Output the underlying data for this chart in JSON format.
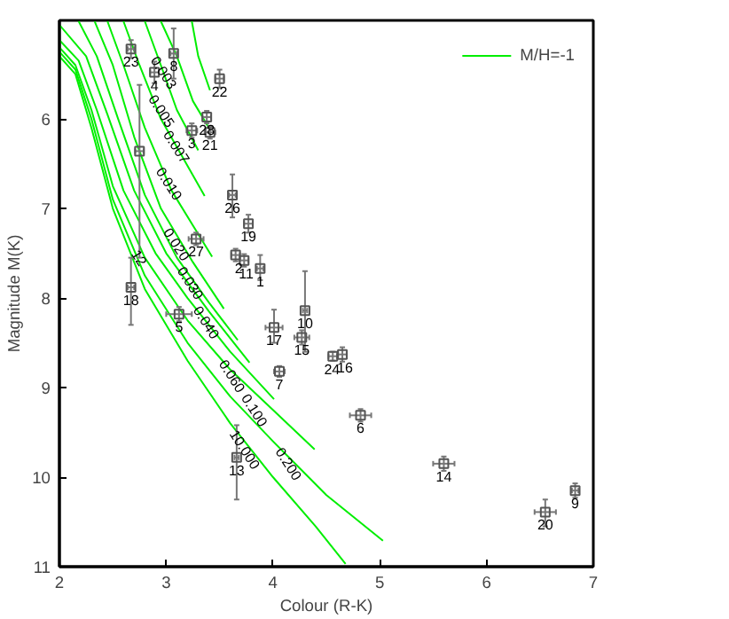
{
  "chart_data": {
    "type": "line",
    "xlabel": "Colour (R-K)",
    "ylabel": "Magnitude M(K)",
    "xlim": [
      2,
      7
    ],
    "ylim": [
      11,
      4.9
    ],
    "xticks": [
      2,
      3,
      4,
      5,
      6,
      7
    ],
    "yticks": [
      6,
      7,
      8,
      9,
      10,
      11
    ],
    "grid": false,
    "legend": "top right",
    "line_style": "solid",
    "series": [
      {
        "name": "M/H=-1",
        "color": "#00ee00",
        "x": [
          2.0,
          2.15,
          2.3,
          2.5,
          2.8,
          3.2,
          3.6,
          4.0,
          4.4,
          4.68
        ],
        "values": [
          5.3,
          5.5,
          6.1,
          7.0,
          7.9,
          8.7,
          9.4,
          10.0,
          10.55,
          10.97
        ]
      },
      {
        "color": "#00ee00",
        "x": [
          2.0,
          2.15,
          2.3,
          2.5,
          2.8,
          3.2,
          3.6,
          4.0,
          4.5,
          5.03
        ],
        "values": [
          5.25,
          5.45,
          6.0,
          6.9,
          7.75,
          8.5,
          9.1,
          9.6,
          10.2,
          10.71
        ]
      },
      {
        "color": "#00ee00",
        "x": [
          2.0,
          2.15,
          2.3,
          2.5,
          2.8,
          3.2,
          3.6,
          4.0,
          4.39
        ],
        "values": [
          5.2,
          5.4,
          5.9,
          6.75,
          7.55,
          8.25,
          8.8,
          9.25,
          9.69
        ]
      },
      {
        "color": "#00ee00",
        "x": [
          2.0,
          2.18,
          2.35,
          2.6,
          2.9,
          3.2,
          3.6,
          4.01
        ],
        "values": [
          5.12,
          5.35,
          5.9,
          6.8,
          7.5,
          8.0,
          8.6,
          9.13
        ]
      },
      {
        "color": "#00ee00",
        "x": [
          2.0,
          2.25,
          2.45,
          2.7,
          3.0,
          3.4,
          3.78
        ],
        "values": [
          4.95,
          5.3,
          5.95,
          6.8,
          7.5,
          8.15,
          8.72
        ]
      },
      {
        "color": "#00ee00",
        "x": [
          2.18,
          2.35,
          2.55,
          2.8,
          3.1,
          3.4,
          3.67
        ],
        "values": [
          4.91,
          5.3,
          6.0,
          6.85,
          7.55,
          8.05,
          8.47
        ]
      },
      {
        "color": "#00ee00",
        "x": [
          2.33,
          2.5,
          2.7,
          2.95,
          3.25,
          3.54
        ],
        "values": [
          4.91,
          5.4,
          6.2,
          7.0,
          7.6,
          8.12
        ]
      },
      {
        "color": "#00ee00",
        "x": [
          2.45,
          2.6,
          2.8,
          3.05,
          3.43
        ],
        "values": [
          4.91,
          5.4,
          6.1,
          6.8,
          7.54
        ]
      },
      {
        "color": "#00ee00",
        "x": [
          2.6,
          2.75,
          2.95,
          3.36
        ],
        "values": [
          4.91,
          5.4,
          6.0,
          6.86
        ]
      },
      {
        "color": "#00ee00",
        "x": [
          2.8,
          2.95,
          3.1,
          3.3
        ],
        "values": [
          4.91,
          5.4,
          5.9,
          6.35
        ]
      },
      {
        "color": "#00ee00",
        "x": [
          2.95,
          3.1,
          3.25,
          3.4
        ],
        "values": [
          4.91,
          5.3,
          5.8,
          6.1
        ]
      },
      {
        "color": "#00ee00",
        "x": [
          3.24,
          3.3,
          3.41
        ],
        "values": [
          4.91,
          5.3,
          5.68
        ]
      },
      {
        "type": "scatter",
        "marker": "square",
        "color": "#555555",
        "x": [
          2.67,
          3.07,
          2.89,
          3.5,
          3.24,
          3.38,
          3.41,
          3.62,
          3.77,
          3.28,
          3.65,
          3.73,
          3.88,
          2.75,
          2.67,
          3.12,
          4.01,
          4.27,
          4.3,
          4.06,
          4.56,
          4.65,
          4.82,
          5.6,
          3.66,
          6.55,
          6.83
        ],
        "values": [
          5.22,
          5.27,
          5.48,
          5.55,
          6.13,
          5.98,
          6.15,
          6.85,
          7.17,
          7.34,
          7.52,
          7.58,
          7.67,
          6.36,
          7.88,
          8.18,
          8.33,
          8.44,
          8.14,
          8.82,
          8.65,
          8.63,
          9.31,
          9.85,
          9.78,
          10.39,
          10.15
        ],
        "errors": [
          0.1,
          [
            4.99,
            5.55
          ],
          0.12,
          0.1,
          0.08,
          0.07,
          0.07,
          [
            6.62,
            7.1
          ],
          0.1,
          0.07,
          0.07,
          0.07,
          [
            7.52,
            7.8
          ],
          [
            5.62,
            7.55
          ],
          [
            7.55,
            8.3
          ],
          0.08,
          [
            8.13,
            8.5
          ],
          0.08,
          [
            7.7,
            8.6
          ],
          0.06,
          0.05,
          0.08,
          0.07,
          0.08,
          [
            9.42,
            10.25
          ],
          [
            10.25,
            10.55
          ],
          0.08
        ],
        "xerrors": [
          0.03,
          0.03,
          0.04,
          0.04,
          0.05,
          0.04,
          0.05,
          0.03,
          0.04,
          0.07,
          0.04,
          0.04,
          0.03,
          0.04,
          0.03,
          0.12,
          0.08,
          0.07,
          0.02,
          0.05,
          0.04,
          0.04,
          0.1,
          0.1,
          0.02,
          0.1,
          0.03
        ]
      }
    ],
    "annotations": [
      {
        "text": "23",
        "x": 2.67,
        "y": 5.22
      },
      {
        "text": "8",
        "x": 3.07,
        "y": 5.27
      },
      {
        "text": "4",
        "x": 2.89,
        "y": 5.48
      },
      {
        "text": "22",
        "x": 3.5,
        "y": 5.55
      },
      {
        "text": "3",
        "x": 3.24,
        "y": 6.13
      },
      {
        "text": "28",
        "x": 3.38,
        "y": 5.98
      },
      {
        "text": "21",
        "x": 3.41,
        "y": 6.15
      },
      {
        "text": "26",
        "x": 3.62,
        "y": 6.85
      },
      {
        "text": "19",
        "x": 3.77,
        "y": 7.17
      },
      {
        "text": "27",
        "x": 3.28,
        "y": 7.34
      },
      {
        "text": "2",
        "x": 3.65,
        "y": 7.52
      },
      {
        "text": "11",
        "x": 3.73,
        "y": 7.58
      },
      {
        "text": "1",
        "x": 3.88,
        "y": 7.67
      },
      {
        "text": "12",
        "x": 2.75,
        "y": 7.55
      },
      {
        "text": "18",
        "x": 2.67,
        "y": 7.88
      },
      {
        "text": "5",
        "x": 3.12,
        "y": 8.18
      },
      {
        "text": "17",
        "x": 4.01,
        "y": 8.33
      },
      {
        "text": "15",
        "x": 4.27,
        "y": 8.44
      },
      {
        "text": "10",
        "x": 4.3,
        "y": 8.14
      },
      {
        "text": "7",
        "x": 4.06,
        "y": 8.82
      },
      {
        "text": "24",
        "x": 4.56,
        "y": 8.65
      },
      {
        "text": "16",
        "x": 4.65,
        "y": 8.63
      },
      {
        "text": "6",
        "x": 4.82,
        "y": 9.31
      },
      {
        "text": "14",
        "x": 5.6,
        "y": 9.85
      },
      {
        "text": "13",
        "x": 3.66,
        "y": 9.78
      },
      {
        "text": "20",
        "x": 6.55,
        "y": 10.39
      },
      {
        "text": "9",
        "x": 6.83,
        "y": 10.15
      },
      {
        "text": "0.003",
        "x": 2.98,
        "y": 5.48
      },
      {
        "text": "0.005",
        "x": 2.96,
        "y": 5.91
      },
      {
        "text": "0.007",
        "x": 3.1,
        "y": 6.31
      },
      {
        "text": "0.010",
        "x": 3.03,
        "y": 6.72
      },
      {
        "text": "0.020",
        "x": 3.1,
        "y": 7.4
      },
      {
        "text": "0.030",
        "x": 3.23,
        "y": 7.83
      },
      {
        "text": "0.040",
        "x": 3.38,
        "y": 8.27
      },
      {
        "text": "0.060",
        "x": 3.62,
        "y": 8.87
      },
      {
        "text": "0.100",
        "x": 3.83,
        "y": 9.25
      },
      {
        "text": "10.000",
        "x": 3.74,
        "y": 9.69
      },
      {
        "text": "0.200",
        "x": 4.15,
        "y": 9.85
      }
    ]
  }
}
